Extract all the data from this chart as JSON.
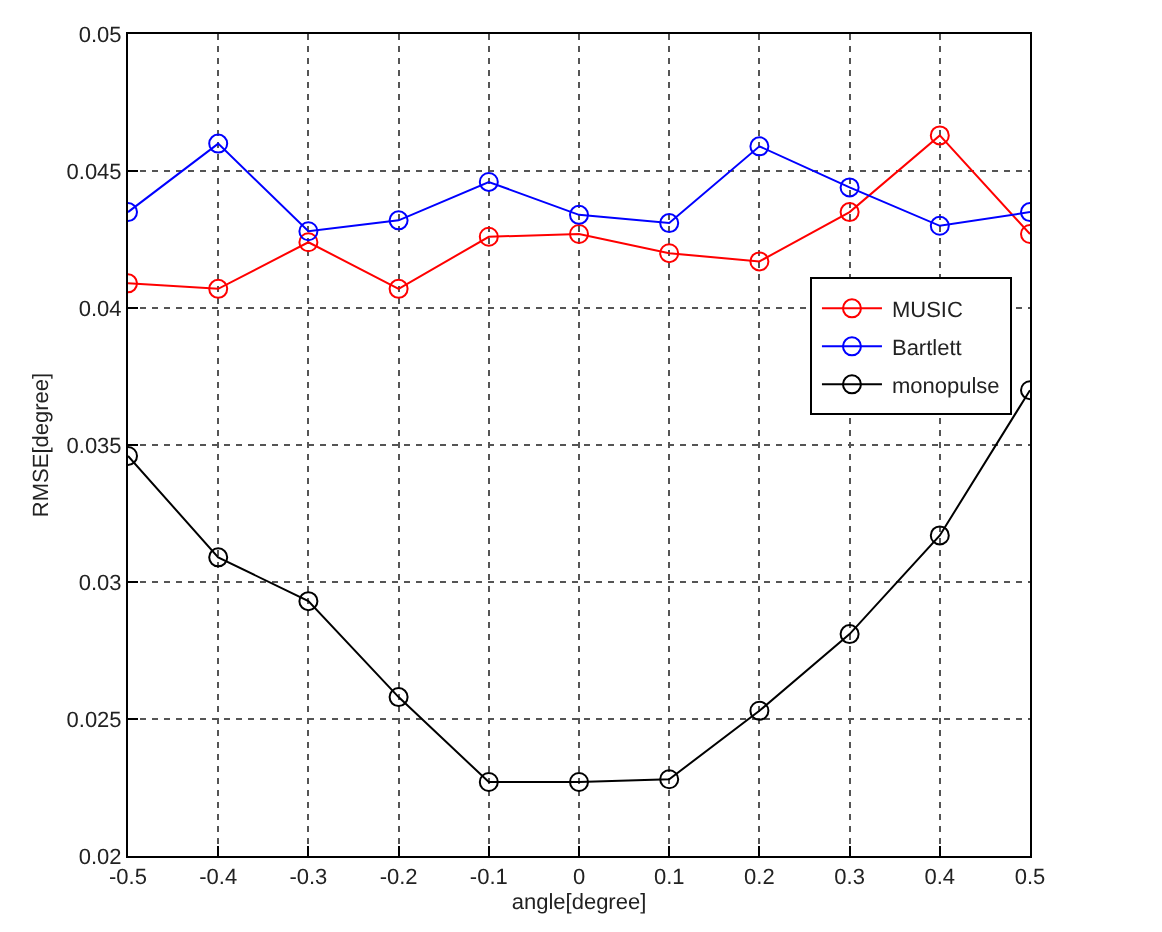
{
  "chart_data": {
    "type": "line",
    "xlabel": "angle[degree]",
    "ylabel": "RMSE[degree]",
    "x": [
      -0.5,
      -0.4,
      -0.3,
      -0.2,
      -0.1,
      0,
      0.1,
      0.2,
      0.3,
      0.4,
      0.5
    ],
    "series": [
      {
        "name": "MUSIC",
        "color": "#ff0000",
        "values": [
          0.0409,
          0.0407,
          0.0424,
          0.0407,
          0.0426,
          0.0427,
          0.042,
          0.0417,
          0.0435,
          0.0463,
          0.0427
        ]
      },
      {
        "name": "Bartlett",
        "color": "#0000ff",
        "values": [
          0.0435,
          0.046,
          0.0428,
          0.0432,
          0.0446,
          0.0434,
          0.0431,
          0.0459,
          0.0444,
          0.043,
          0.0435
        ]
      },
      {
        "name": "monopulse",
        "color": "#000000",
        "values": [
          0.0346,
          0.0309,
          0.0293,
          0.0258,
          0.0227,
          0.0227,
          0.0228,
          0.0253,
          0.0281,
          0.0317,
          0.037
        ]
      }
    ],
    "xlim": [
      -0.5,
      0.5
    ],
    "xticks": [
      -0.5,
      -0.4,
      -0.3,
      -0.2,
      -0.1,
      0,
      0.1,
      0.2,
      0.3,
      0.4,
      0.5
    ],
    "ylim": [
      0.02,
      0.05
    ],
    "yticks": [
      0.02,
      0.025,
      0.03,
      0.035,
      0.04,
      0.045,
      0.05
    ],
    "grid": true,
    "legend": "right",
    "marker": "circle",
    "line_style": "solid"
  }
}
